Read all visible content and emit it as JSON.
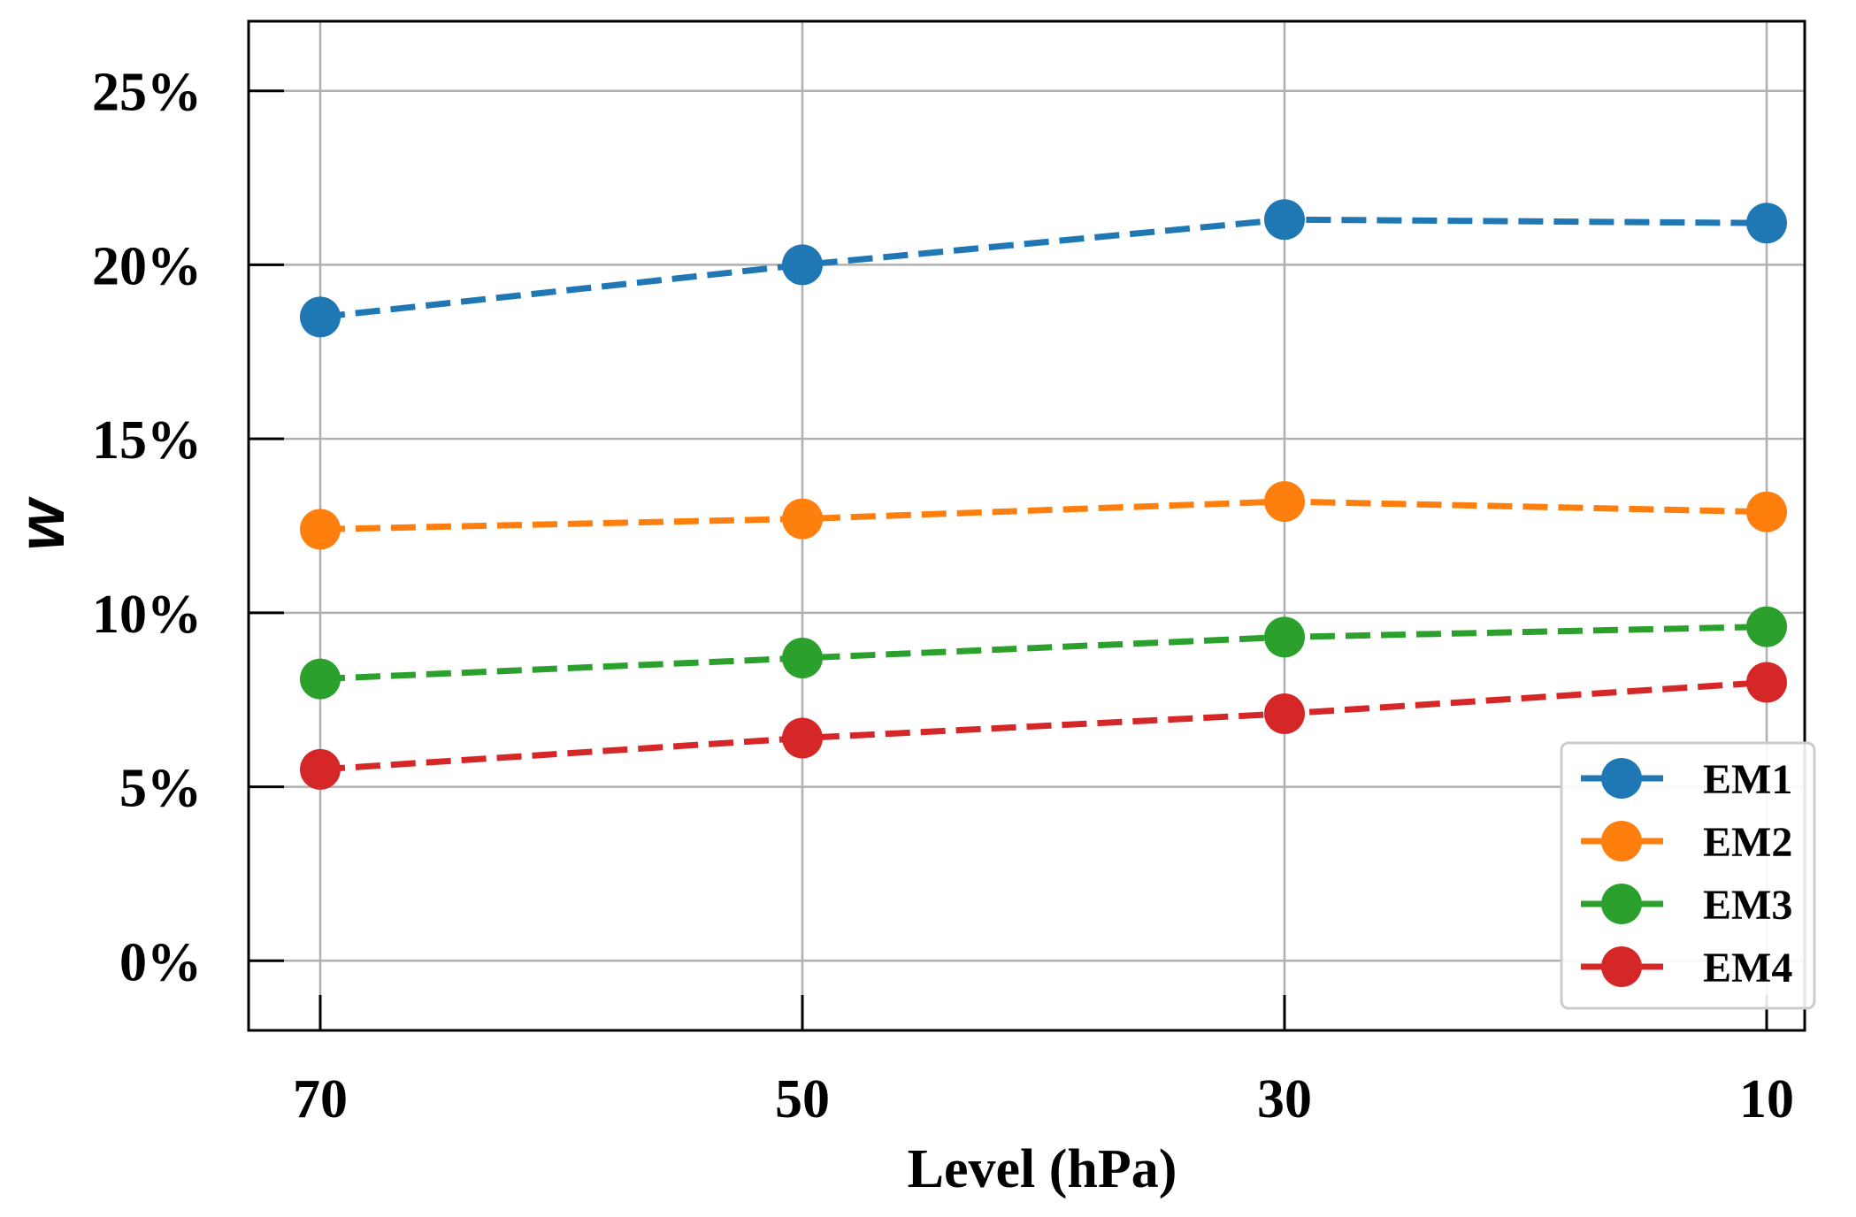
{
  "chart_data": {
    "type": "line",
    "title": "",
    "xlabel": "Level (hPa)",
    "ylabel": "w",
    "categories": [
      "70",
      "50",
      "30",
      "10"
    ],
    "ylim": [
      -0.02,
      0.27
    ],
    "yticks": [
      0,
      0.05,
      0.1,
      0.15,
      0.2,
      0.25
    ],
    "ytick_labels": [
      "0%",
      "5%",
      "10%",
      "15%",
      "20%",
      "25%"
    ],
    "grid": true,
    "legend": "bottom-right",
    "series": [
      {
        "name": "EM1",
        "color": "#1f77b4",
        "values": [
          0.185,
          0.2,
          0.213,
          0.212
        ]
      },
      {
        "name": "EM2",
        "color": "#ff7f0e",
        "values": [
          0.124,
          0.127,
          0.132,
          0.129
        ]
      },
      {
        "name": "EM3",
        "color": "#2ca02c",
        "values": [
          0.081,
          0.087,
          0.093,
          0.096
        ]
      },
      {
        "name": "EM4",
        "color": "#d62728",
        "values": [
          0.055,
          0.064,
          0.071,
          0.08
        ]
      }
    ]
  }
}
